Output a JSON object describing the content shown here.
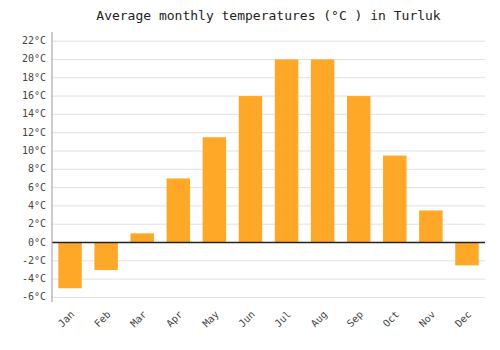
{
  "chart_data": {
    "type": "bar",
    "title": "Average monthly temperatures (°C ) in Turluk",
    "categories": [
      "Jan",
      "Feb",
      "Mar",
      "Apr",
      "May",
      "Jun",
      "Jul",
      "Aug",
      "Sep",
      "Oct",
      "Nov",
      "Dec"
    ],
    "values": [
      -5,
      -3,
      1,
      7,
      11.5,
      16,
      20,
      20,
      16,
      9.5,
      3.5,
      -2.5
    ],
    "color": "#FFA726",
    "ylim": [
      -6.5,
      23
    ],
    "yticks": [
      {
        "value": -6,
        "label": "-6°C"
      },
      {
        "value": -4,
        "label": "-4°C"
      },
      {
        "value": -2,
        "label": "-2°C"
      },
      {
        "value": 0,
        "label": "0°C"
      },
      {
        "value": 2,
        "label": "2°C"
      },
      {
        "value": 4,
        "label": "4°C"
      },
      {
        "value": 6,
        "label": "6°C"
      },
      {
        "value": 8,
        "label": "8°C"
      },
      {
        "value": 10,
        "label": "10°C"
      },
      {
        "value": 12,
        "label": "12°C"
      },
      {
        "value": 14,
        "label": "14°C"
      },
      {
        "value": 16,
        "label": "16°C"
      },
      {
        "value": 18,
        "label": "18°C"
      },
      {
        "value": 20,
        "label": "20°C"
      },
      {
        "value": 22,
        "label": "22°C"
      }
    ],
    "grid": true
  }
}
